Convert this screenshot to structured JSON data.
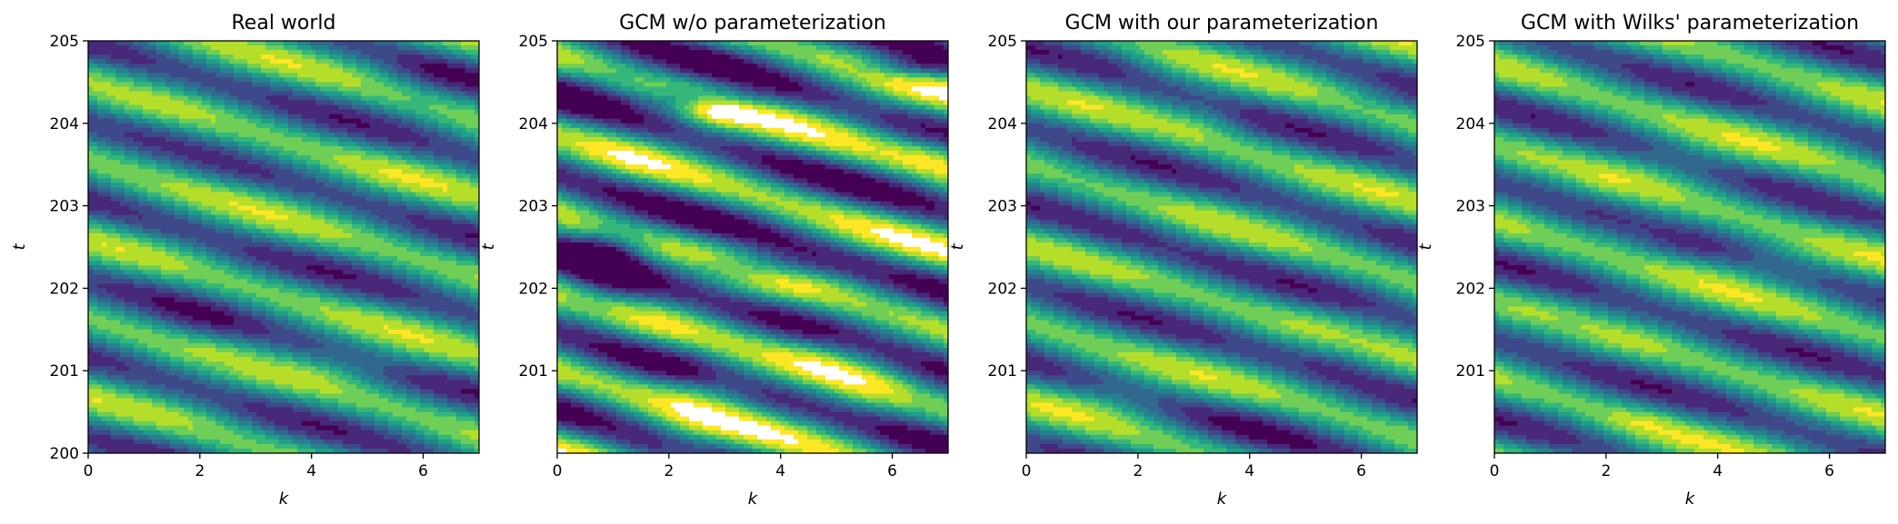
{
  "chart_data": [
    {
      "type": "heatmap",
      "title": "Real world",
      "xlabel": "k",
      "ylabel": "t",
      "xlim": [
        0,
        7
      ],
      "ylim": [
        200,
        205
      ],
      "xticks": [
        "0",
        "2",
        "4",
        "6"
      ],
      "yticks": [
        "200",
        "201",
        "202",
        "203",
        "204",
        "205"
      ],
      "colormap": "viridis",
      "colors": [
        "#440154",
        "#482878",
        "#3e4989",
        "#31688e",
        "#26828e",
        "#1f9e89",
        "#35b779",
        "#6ece58",
        "#b5de2b",
        "#fde725",
        "#ffffff"
      ],
      "grid": false
    },
    {
      "type": "heatmap",
      "title": "GCM w/o parameterization",
      "xlabel": "k",
      "ylabel": "t",
      "xlim": [
        0,
        7
      ],
      "ylim": [
        200,
        205
      ],
      "xticks": [
        "0",
        "2",
        "4",
        "6"
      ],
      "yticks": [
        "201",
        "202",
        "203",
        "204",
        "205"
      ],
      "colormap": "viridis",
      "colors": [
        "#440154",
        "#482878",
        "#3e4989",
        "#31688e",
        "#26828e",
        "#1f9e89",
        "#35b779",
        "#6ece58",
        "#b5de2b",
        "#fde725",
        "#ffffff"
      ],
      "grid": false
    },
    {
      "type": "heatmap",
      "title": "GCM with our parameterization",
      "xlabel": "k",
      "ylabel": "t",
      "xlim": [
        0,
        7
      ],
      "ylim": [
        200,
        205
      ],
      "xticks": [
        "0",
        "2",
        "4",
        "6"
      ],
      "yticks": [
        "201",
        "202",
        "203",
        "204",
        "205"
      ],
      "colormap": "viridis",
      "colors": [
        "#440154",
        "#482878",
        "#3e4989",
        "#31688e",
        "#26828e",
        "#1f9e89",
        "#35b779",
        "#6ece58",
        "#b5de2b",
        "#fde725",
        "#ffffff"
      ],
      "grid": false
    },
    {
      "type": "heatmap",
      "title": "GCM with Wilks' parameterization",
      "xlabel": "k",
      "ylabel": "t",
      "xlim": [
        0,
        7
      ],
      "ylim": [
        200,
        205
      ],
      "xticks": [
        "0",
        "2",
        "4",
        "6"
      ],
      "yticks": [
        "201",
        "202",
        "203",
        "204",
        "205"
      ],
      "colormap": "viridis",
      "colors": [
        "#440154",
        "#482878",
        "#3e4989",
        "#31688e",
        "#26828e",
        "#1f9e89",
        "#35b779",
        "#6ece58",
        "#b5de2b",
        "#fde725",
        "#ffffff"
      ],
      "grid": false
    }
  ]
}
